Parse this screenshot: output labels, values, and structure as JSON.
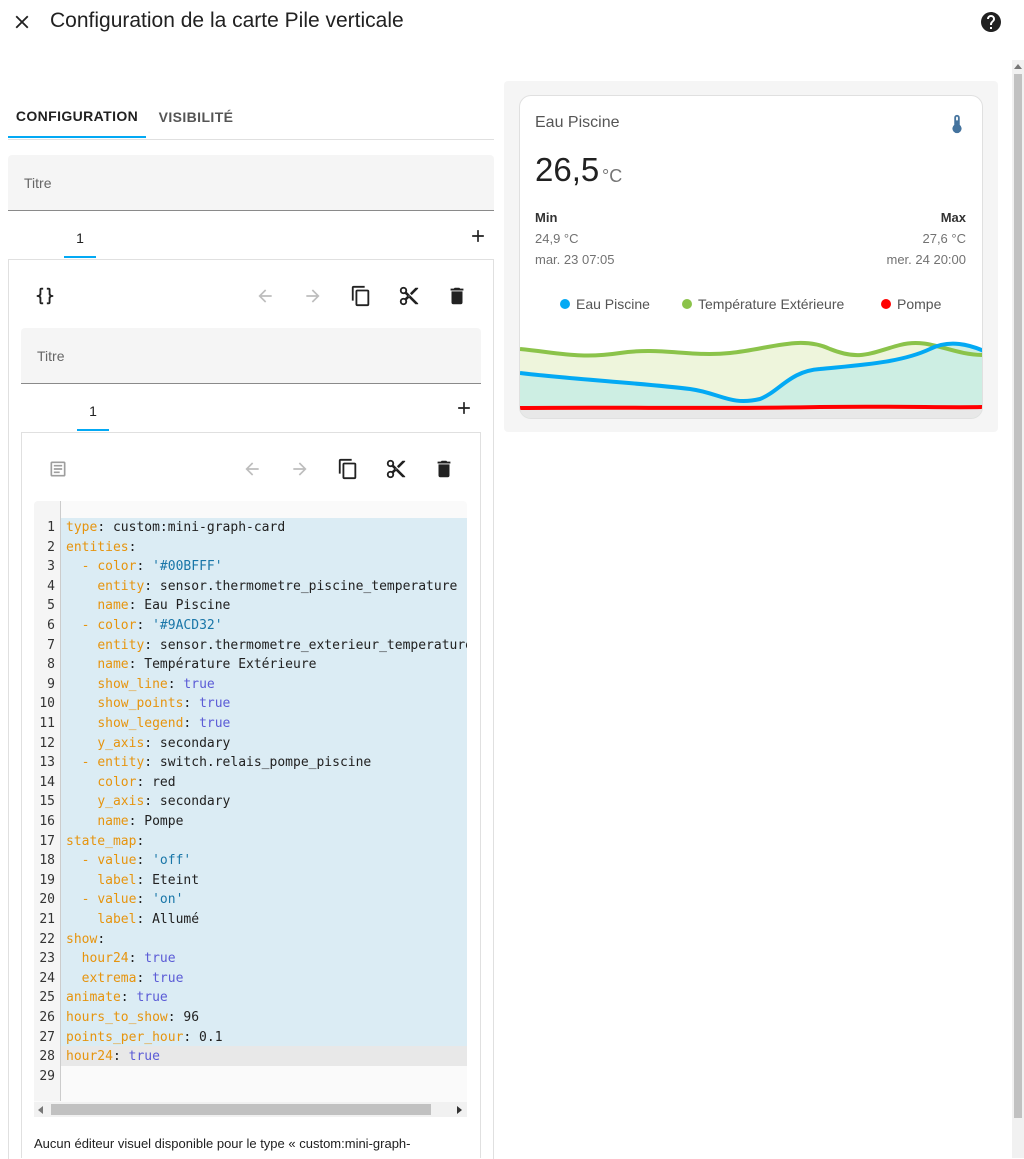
{
  "header": {
    "title": "Configuration de la carte Pile verticale",
    "close_icon": "close-icon",
    "help_icon": "help-circle-icon"
  },
  "tabs": [
    {
      "label": "CONFIGURATION",
      "active": true
    },
    {
      "label": "VISIBILITÉ",
      "active": false
    }
  ],
  "outer": {
    "title_placeholder": "Titre",
    "card_tab": "1",
    "code_toggle_icon": "code-braces-icon"
  },
  "inner": {
    "title_placeholder": "Titre",
    "card_tab": "1",
    "visual_toggle_icon": "list-box-icon"
  },
  "toolbar_icons": [
    "arrow-left-icon",
    "arrow-right-icon",
    "copy-icon",
    "cut-icon",
    "delete-icon"
  ],
  "editor": {
    "lines": [
      "type: custom:mini-graph-card",
      "entities:",
      "  - color: '#00BFFF'",
      "    entity: sensor.thermometre_piscine_temperature",
      "    name: Eau Piscine",
      "  - color: '#9ACD32'",
      "    entity: sensor.thermometre_exterieur_temperature",
      "    name: Température Extérieure",
      "    show_line: true",
      "    show_points: true",
      "    show_legend: true",
      "    y_axis: secondary",
      "  - entity: switch.relais_pompe_piscine",
      "    color: red",
      "    y_axis: secondary",
      "    name: Pompe",
      "state_map:",
      "  - value: 'off'",
      "    label: Eteint",
      "  - value: 'on'",
      "    label: Allumé",
      "show:",
      "  hour24: true",
      "  extrema: true",
      "animate: true",
      "hours_to_show: 96",
      "points_per_hour: 0.1",
      "hour24: true",
      ""
    ]
  },
  "footer_note": "Aucun éditeur visuel disponible pour le type « custom:mini-graph-",
  "preview": {
    "name": "Eau Piscine",
    "icon": "thermometer-icon",
    "state": "26,5",
    "unit": "°C",
    "min_label": "Min",
    "min_value": "24,9 °C",
    "min_time": "mar. 23 07:05",
    "max_label": "Max",
    "max_value": "27,6 °C",
    "max_time": "mer. 24 20:00",
    "legend": [
      {
        "name": "Eau Piscine",
        "color": "#03a9f4"
      },
      {
        "name": "Température Extérieure",
        "color": "#8bc34a"
      },
      {
        "name": "Pompe",
        "color": "#ff0000"
      }
    ]
  },
  "colors": {
    "accent": "#03a9f4",
    "water": "#03a9f4",
    "outdoor": "#8bc34a",
    "pump": "#ff0000"
  }
}
